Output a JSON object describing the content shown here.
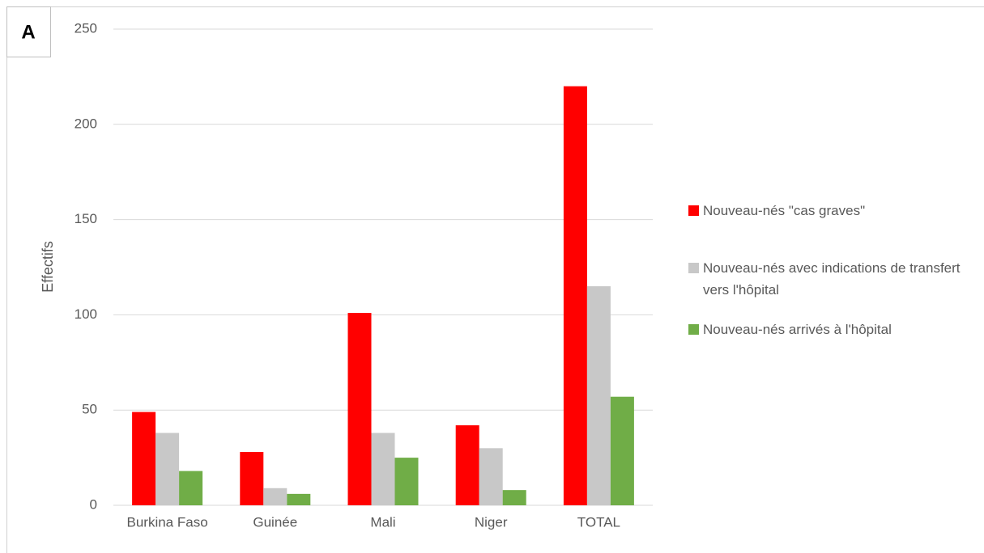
{
  "chart_data": {
    "type": "bar",
    "panel_label": "A",
    "ylabel": "Effectifs",
    "categories": [
      "Burkina Faso",
      "Guinée",
      "Mali",
      "Niger",
      "TOTAL"
    ],
    "series": [
      {
        "name": "Nouveau-nés \"cas graves\"",
        "color": "#ff0000",
        "values": [
          49,
          28,
          101,
          42,
          220
        ]
      },
      {
        "name": "Nouveau-nés avec indications de transfert vers l'hôpital",
        "color": "#c8c8c8",
        "values": [
          38,
          9,
          38,
          30,
          115
        ]
      },
      {
        "name": "Nouveau-nés arrivés à l'hôpital",
        "color": "#70ad47",
        "values": [
          18,
          6,
          25,
          8,
          57
        ]
      }
    ],
    "ylim": [
      0,
      250
    ],
    "yticks": [
      0,
      50,
      100,
      150,
      200,
      250
    ],
    "grid": true,
    "legend": "right"
  }
}
